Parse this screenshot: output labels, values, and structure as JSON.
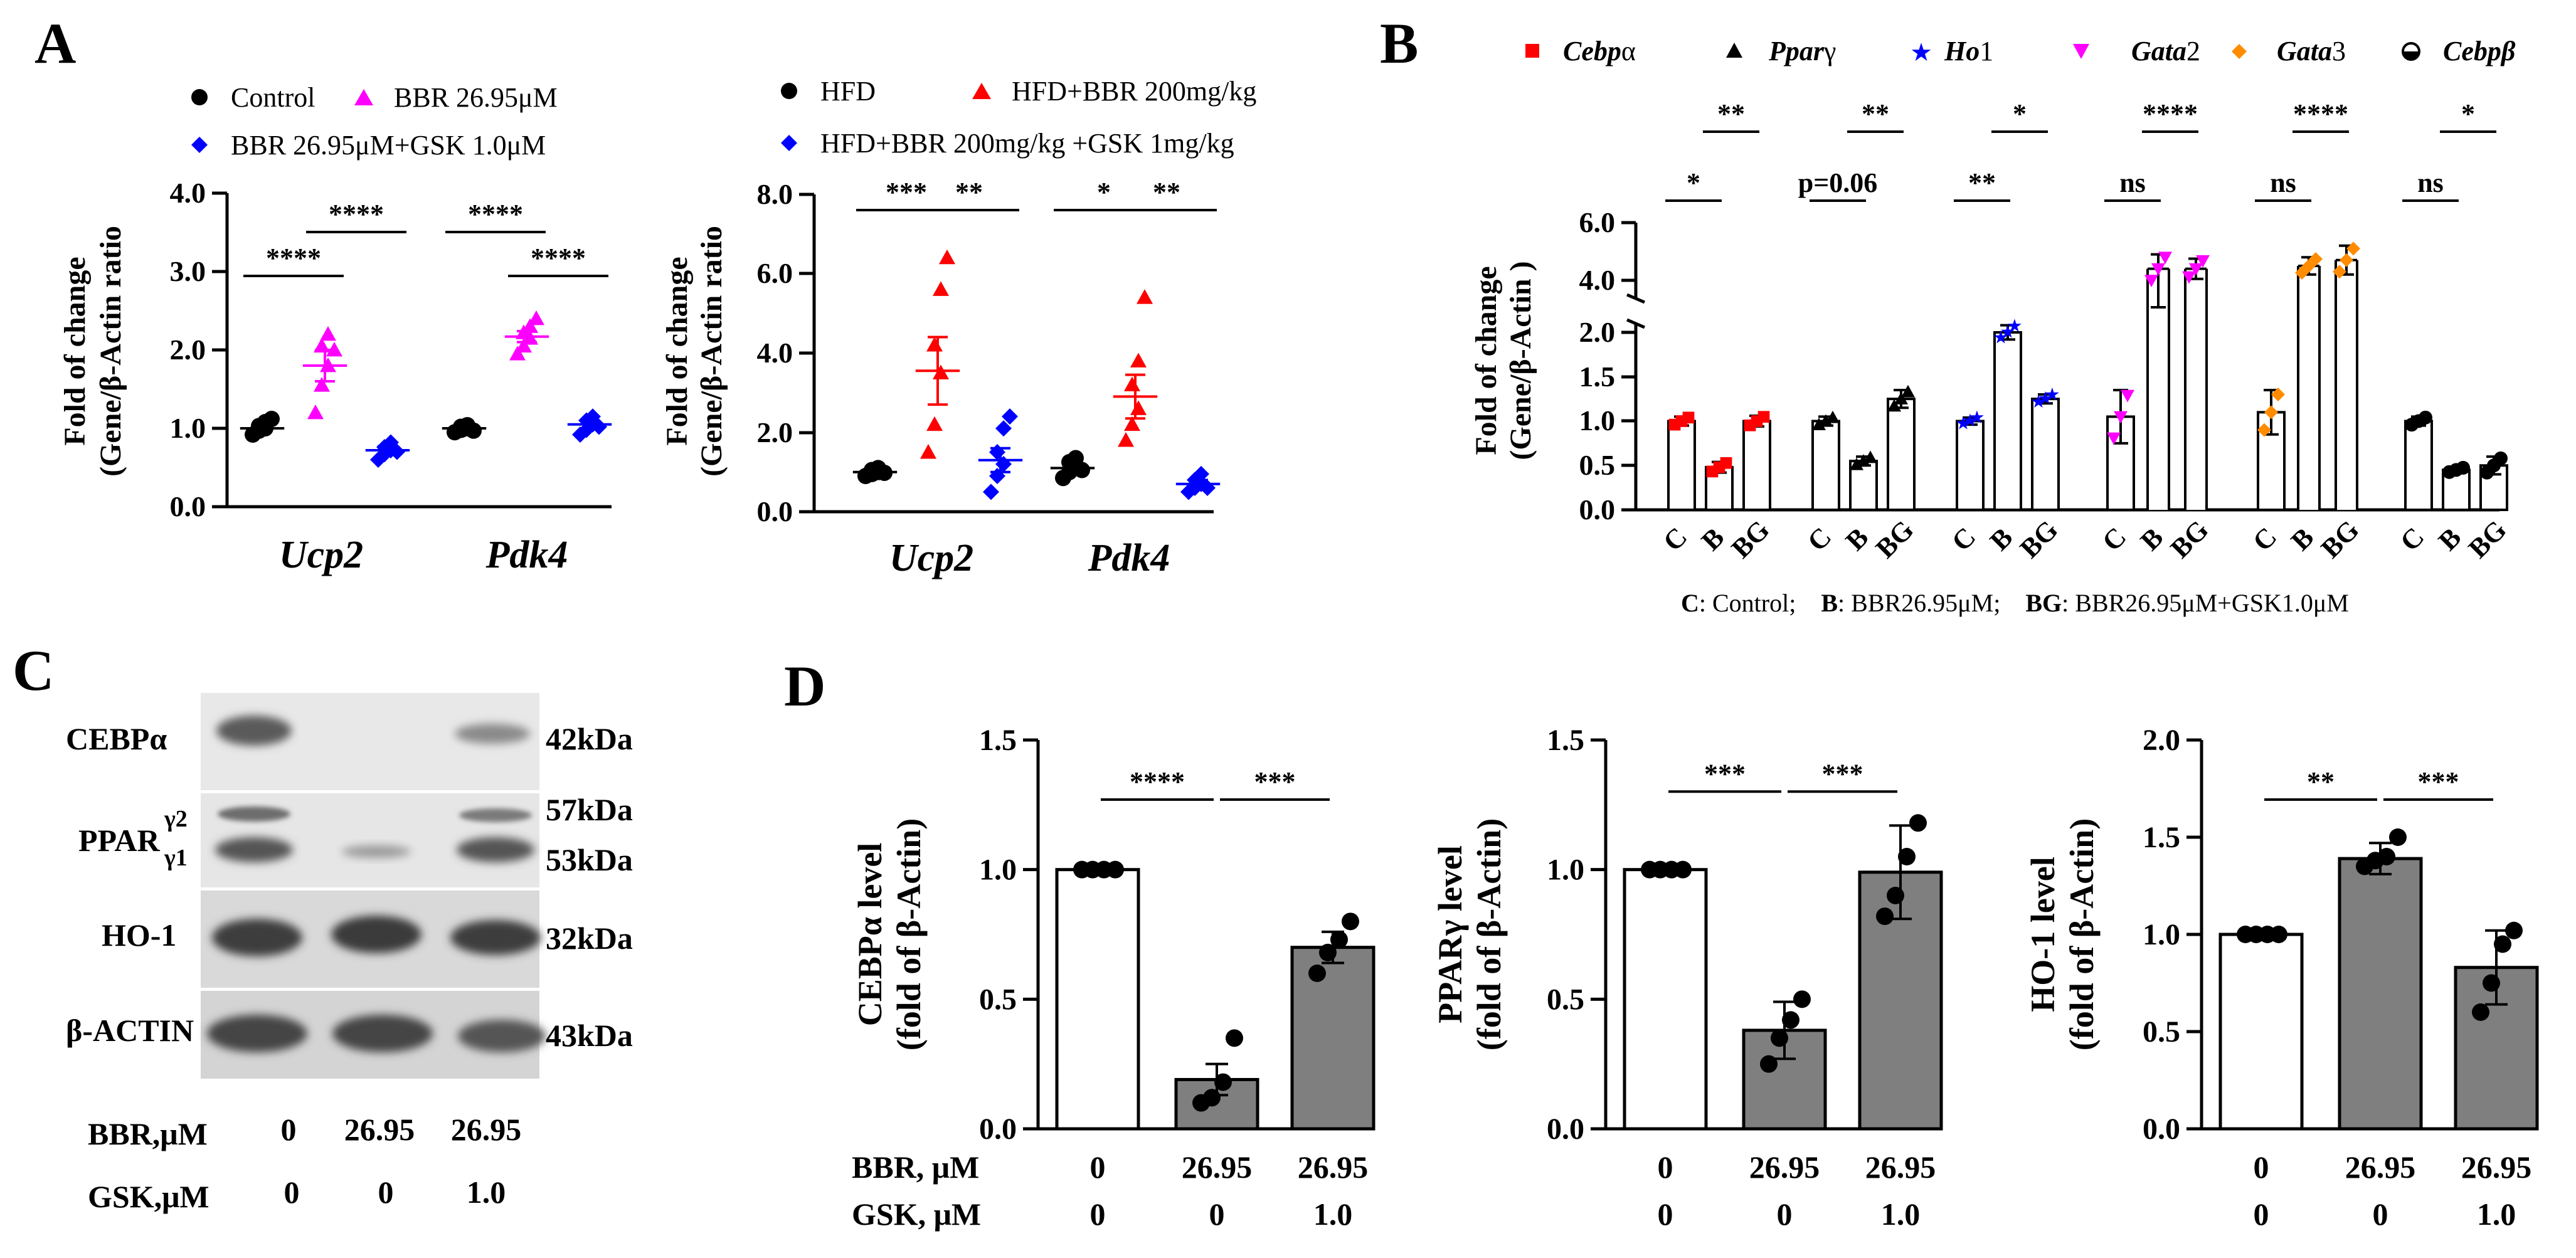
{
  "panel_letters": {
    "A": "A",
    "B": "B",
    "C": "C",
    "D": "D"
  },
  "colors": {
    "black": "#000000",
    "magenta": "#ff00ff",
    "blue": "#0000ff",
    "red": "#ff0000",
    "orange": "#ff8c00",
    "bar_gray": "#7f7f7f",
    "bar_gray2": "#a6a6a6"
  },
  "chart_data": [
    {
      "id": "A1",
      "type": "scatter",
      "xlabel": "",
      "ylabel_lines": [
        "Fold of change",
        "(Gene/β-Actin ratio"
      ],
      "ylim": [
        0,
        4.0
      ],
      "yticks": [
        "0.0",
        "1.0",
        "2.0",
        "3.0",
        "4.0"
      ],
      "categories": [
        "Ucp2",
        "Pdk4"
      ],
      "legend": [
        "Control",
        "BBR 26.95μM",
        "BBR 26.95μM+GSK 1.0μM"
      ],
      "series": [
        {
          "name": "Control",
          "color": "#000000",
          "marker": "circle",
          "means": [
            1.0,
            1.0
          ],
          "sem": [
            0.04,
            0.03
          ],
          "points": [
            [
              0.92,
              0.97,
              1.0,
              1.03,
              1.08,
              1.12
            ],
            [
              0.95,
              0.98,
              1.0,
              1.02,
              1.04,
              0.97
            ]
          ]
        },
        {
          "name": "BBR 26.95μM",
          "color": "#ff00ff",
          "marker": "triangle",
          "means": [
            1.8,
            2.17
          ],
          "sem": [
            0.2,
            0.07
          ],
          "points": [
            [
              1.2,
              1.55,
              1.8,
              2.05,
              2.2,
              2.0
            ],
            [
              1.95,
              2.05,
              2.15,
              2.22,
              2.3,
              2.4
            ]
          ]
        },
        {
          "name": "BBR 26.95μM+GSK 1.0μM",
          "color": "#0000ff",
          "marker": "diamond",
          "means": [
            0.72,
            1.05
          ],
          "sem": [
            0.05,
            0.05
          ],
          "points": [
            [
              0.6,
              0.67,
              0.72,
              0.76,
              0.82,
              0.7
            ],
            [
              0.92,
              0.98,
              1.05,
              1.1,
              1.15,
              1.02
            ]
          ]
        }
      ],
      "significance": [
        {
          "gene": "Ucp2",
          "pair": [
            0,
            1
          ],
          "label": "****"
        },
        {
          "gene": "Ucp2",
          "pair": [
            1,
            2
          ],
          "label": "****"
        },
        {
          "gene": "Pdk4",
          "pair": [
            0,
            1
          ],
          "label": "****"
        },
        {
          "gene": "Pdk4",
          "pair": [
            1,
            2
          ],
          "label": "****"
        }
      ]
    },
    {
      "id": "A2",
      "type": "scatter",
      "xlabel": "",
      "ylabel_lines": [
        "Fold of change",
        "(Gene/β-Actin ratio"
      ],
      "ylim": [
        0,
        8.0
      ],
      "yticks": [
        "0.0",
        "2.0",
        "4.0",
        "6.0",
        "8.0"
      ],
      "categories": [
        "Ucp2",
        "Pdk4"
      ],
      "legend": [
        "HFD",
        "HFD+BBR 200mg/kg",
        "HFD+BBR 200mg/kg +GSK 1mg/kg"
      ],
      "series": [
        {
          "name": "HFD",
          "color": "#000000",
          "marker": "circle",
          "means": [
            1.0,
            1.1
          ],
          "sem": [
            0.05,
            0.12
          ],
          "points": [
            [
              0.9,
              0.95,
              1.0,
              1.05,
              1.1,
              0.98
            ],
            [
              0.85,
              1.0,
              1.1,
              1.25,
              1.35,
              1.05
            ]
          ]
        },
        {
          "name": "HFD+BBR 200mg/kg",
          "color": "#ff0000",
          "marker": "triangle",
          "means": [
            3.55,
            2.9
          ],
          "sem": [
            0.85,
            0.55
          ],
          "points": [
            [
              1.5,
              2.2,
              3.5,
              4.2,
              5.6,
              6.4
            ],
            [
              1.8,
              2.2,
              2.6,
              3.2,
              3.8,
              5.4
            ]
          ]
        },
        {
          "name": "HFD+BBR 200mg/kg +GSK 1mg/kg",
          "color": "#0000ff",
          "marker": "diamond",
          "means": [
            1.3,
            0.7
          ],
          "sem": [
            0.3,
            0.1
          ],
          "points": [
            [
              0.5,
              0.9,
              1.2,
              1.5,
              2.1,
              2.4
            ],
            [
              0.5,
              0.6,
              0.7,
              0.8,
              0.95,
              0.6
            ]
          ]
        }
      ],
      "significance": [
        {
          "gene": "Ucp2",
          "pair": [
            0,
            1
          ],
          "label": "***"
        },
        {
          "gene": "Ucp2",
          "pair": [
            1,
            2
          ],
          "label": "**"
        },
        {
          "gene": "Pdk4",
          "pair": [
            0,
            1
          ],
          "label": "*"
        },
        {
          "gene": "Pdk4",
          "pair": [
            1,
            2
          ],
          "label": "**"
        }
      ]
    },
    {
      "id": "B",
      "type": "bar",
      "ylabel_lines": [
        "Fold of change",
        "(Gene/β-Actin )"
      ],
      "ylabel_italic": "Actin",
      "yticks_lower": [
        "0.0",
        "0.5",
        "1.0",
        "1.5",
        "2.0"
      ],
      "yticks_upper": [
        "4.0",
        "6.0"
      ],
      "group_x_labels": [
        "C",
        "B",
        "BG"
      ],
      "legend": [
        {
          "text": "Cebpα",
          "italic": "Cebp",
          "rest": "α",
          "color": "#ff0000",
          "marker": "square"
        },
        {
          "text": "Pparγ",
          "italic": "Ppar",
          "rest": "γ",
          "color": "#000000",
          "marker": "triangle"
        },
        {
          "text": "Ho1",
          "italic": "Ho",
          "rest": "1",
          "color": "#0000ff",
          "marker": "star"
        },
        {
          "text": "Gata2",
          "italic": "Gata",
          "rest": "2",
          "color": "#ff00ff",
          "marker": "triangle-down"
        },
        {
          "text": "Gata3",
          "italic": "Gata",
          "rest": "3",
          "color": "#ff8c00",
          "marker": "diamond"
        },
        {
          "text": "Cebpβ",
          "italic": "Cebpβ",
          "rest": "",
          "color": "#000000",
          "marker": "half-circle"
        }
      ],
      "groups": [
        {
          "gene": "Cebpα",
          "color": "#ff0000",
          "values": [
            1.0,
            0.48,
            1.0
          ],
          "err": [
            0.05,
            0.06,
            0.06
          ]
        },
        {
          "gene": "Pparγ",
          "color": "#000000",
          "values": [
            1.0,
            0.55,
            1.25
          ],
          "err": [
            0.05,
            0.05,
            0.1
          ]
        },
        {
          "gene": "Ho1",
          "color": "#0000ff",
          "values": [
            1.0,
            2.0,
            1.25
          ],
          "err": [
            0.04,
            0.08,
            0.05
          ]
        },
        {
          "gene": "Gata2",
          "color": "#ff00ff",
          "values": [
            1.05,
            4.4,
            4.4
          ],
          "err": [
            0.3,
            0.5,
            0.35
          ]
        },
        {
          "gene": "Gata3",
          "color": "#ff8c00",
          "values": [
            1.1,
            4.5,
            4.7
          ],
          "err": [
            0.25,
            0.3,
            0.5
          ]
        },
        {
          "gene": "Cebpβ",
          "color": "#000000",
          "values": [
            1.0,
            0.45,
            0.5
          ],
          "err": [
            0.05,
            0.03,
            0.1
          ]
        }
      ],
      "significance_top": [
        "**",
        "**",
        "*",
        "****",
        "****",
        "*"
      ],
      "significance_bottom": [
        "*",
        "p=0.06",
        "**",
        "ns",
        "ns",
        "ns"
      ],
      "footnote": {
        "c_key": "C",
        "c_text": ": Control;",
        "b_key": "B",
        "b_text": ": BBR26.95μM;",
        "bg_key": "BG",
        "bg_text": ": BBR26.95μM+GSK1.0μM"
      }
    },
    {
      "id": "D1",
      "type": "bar",
      "ylabel_lines": [
        "CEBPα level",
        "(fold of β-Actin)"
      ],
      "ylim": [
        0,
        1.5
      ],
      "yticks": [
        "0.0",
        "0.5",
        "1.0",
        "1.5"
      ],
      "categories": [
        "0",
        "26.95",
        "26.95"
      ],
      "gsk": [
        "0",
        "0",
        "1.0"
      ],
      "values": [
        1.0,
        0.19,
        0.7
      ],
      "err": [
        0.0,
        0.06,
        0.06
      ],
      "points": [
        [
          1.0,
          1.0,
          1.0,
          1.0
        ],
        [
          0.1,
          0.12,
          0.18,
          0.35
        ],
        [
          0.6,
          0.68,
          0.73,
          0.8
        ]
      ],
      "significance": [
        {
          "pair": [
            0,
            1
          ],
          "label": "****"
        },
        {
          "pair": [
            1,
            2
          ],
          "label": "***"
        }
      ]
    },
    {
      "id": "D2",
      "type": "bar",
      "ylabel_lines": [
        "PPARγ level",
        "(fold of β-Actin)"
      ],
      "ylim": [
        0,
        1.5
      ],
      "yticks": [
        "0.0",
        "0.5",
        "1.0",
        "1.5"
      ],
      "categories": [
        "0",
        "26.95",
        "26.95"
      ],
      "gsk": [
        "0",
        "0",
        "1.0"
      ],
      "values": [
        1.0,
        0.38,
        0.99
      ],
      "err": [
        0.0,
        0.11,
        0.18
      ],
      "points": [
        [
          1.0,
          1.0,
          1.0,
          1.0
        ],
        [
          0.25,
          0.35,
          0.42,
          0.5
        ],
        [
          0.82,
          0.9,
          1.05,
          1.18
        ]
      ],
      "significance": [
        {
          "pair": [
            0,
            1
          ],
          "label": "***"
        },
        {
          "pair": [
            1,
            2
          ],
          "label": "***"
        }
      ]
    },
    {
      "id": "D3",
      "type": "bar",
      "ylabel_lines": [
        "HO-1 level",
        "(fold of β-Actin)"
      ],
      "ylim": [
        0,
        2.0
      ],
      "yticks": [
        "0.0",
        "0.5",
        "1.0",
        "1.5",
        "2.0"
      ],
      "categories": [
        "0",
        "26.95",
        "26.95"
      ],
      "gsk": [
        "0",
        "0",
        "1.0"
      ],
      "values": [
        1.0,
        1.39,
        0.83
      ],
      "err": [
        0.0,
        0.08,
        0.19
      ],
      "points": [
        [
          1.0,
          1.0,
          1.0,
          1.0
        ],
        [
          1.35,
          1.38,
          1.4,
          1.5
        ],
        [
          0.6,
          0.75,
          0.95,
          1.02
        ]
      ],
      "significance": [
        {
          "pair": [
            0,
            1
          ],
          "label": "**"
        },
        {
          "pair": [
            1,
            2
          ],
          "label": "***"
        }
      ]
    }
  ],
  "blot": {
    "rows": [
      {
        "label": "CEBPα",
        "kda": "42kDa"
      },
      {
        "label": "PPAR",
        "sup": "γ2",
        "sub": "γ1",
        "kda_top": "57kDa",
        "kda_bottom": "53kDa"
      },
      {
        "label": "HO-1",
        "kda": "32kDa"
      },
      {
        "label": "β-ACTIN",
        "kda": "43kDa"
      }
    ],
    "bbr_label": "BBR,μM",
    "bbr_values": [
      "0",
      "26.95",
      "26.95"
    ],
    "gsk_label": "GSK,μM",
    "gsk_values": [
      "0",
      "0",
      "1.0"
    ]
  },
  "panel_d_row_labels": {
    "bbr": "BBR, μM",
    "gsk": "GSK, μM"
  }
}
